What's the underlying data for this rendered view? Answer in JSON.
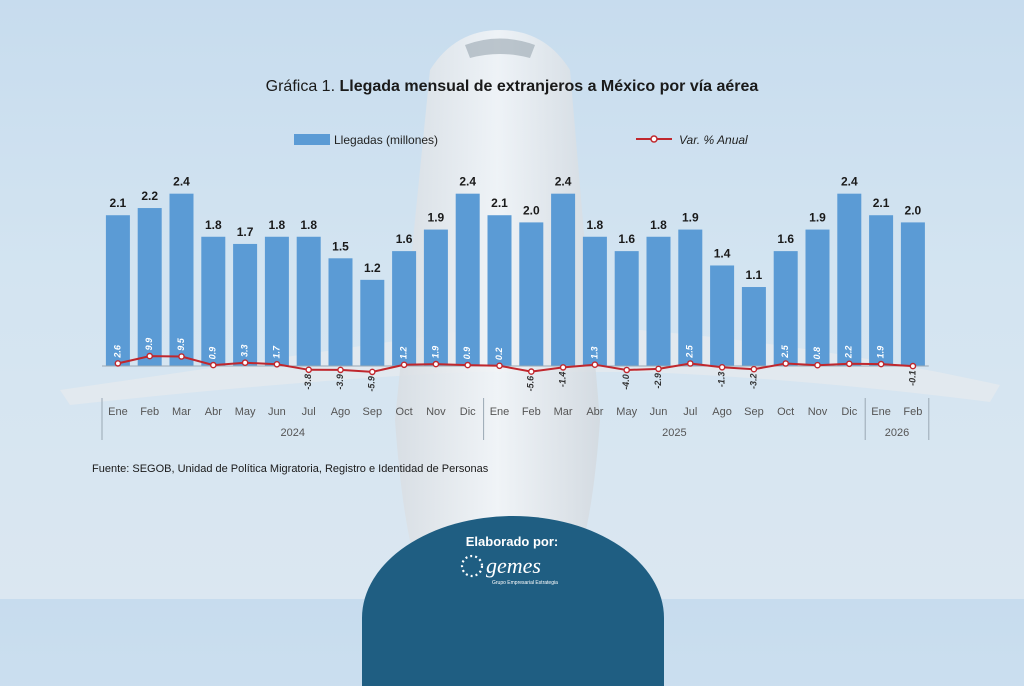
{
  "title_prefix": "Gráfica 1.",
  "title_main": "Llegada mensual de extranjeros a México por vía aérea",
  "source": "Fuente: SEGOB, Unidad de Política Migratoria, Registro e Identidad de Personas",
  "badge": {
    "label": "Elaborado por:",
    "logo_text": "gemes",
    "logo_sub": "Grupo Empresarial Estrategia"
  },
  "colors": {
    "bar": "#5b9bd5",
    "line": "#c0272d",
    "axis_text": "#555555"
  },
  "chart_data": {
    "type": "bar",
    "legend": {
      "bar_series": "Llegadas (millones)",
      "line_series": "Var. % Anual",
      "position": "top"
    },
    "categories": [
      "Ene",
      "Feb",
      "Mar",
      "Abr",
      "May",
      "Jun",
      "Jul",
      "Ago",
      "Sep",
      "Oct",
      "Nov",
      "Dic",
      "Ene",
      "Feb",
      "Mar",
      "Abr",
      "May",
      "Jun",
      "Jul",
      "Ago",
      "Sep",
      "Oct",
      "Nov",
      "Dic",
      "Ene",
      "Feb"
    ],
    "years": [
      {
        "label": "2024",
        "start": 0,
        "end": 11
      },
      {
        "label": "2025",
        "start": 12,
        "end": 23
      },
      {
        "label": "2026",
        "start": 24,
        "end": 25
      }
    ],
    "series": [
      {
        "name": "Llegadas (millones)",
        "type": "bar",
        "values": [
          2.1,
          2.2,
          2.4,
          1.8,
          1.7,
          1.8,
          1.8,
          1.5,
          1.2,
          1.6,
          1.9,
          2.4,
          2.1,
          2.0,
          2.4,
          1.8,
          1.6,
          1.8,
          1.9,
          1.4,
          1.1,
          1.6,
          1.9,
          2.4,
          2.1,
          2.0
        ]
      },
      {
        "name": "Var. % Anual",
        "type": "line",
        "values": [
          2.6,
          9.9,
          9.5,
          0.9,
          3.3,
          1.7,
          -3.8,
          -3.9,
          -5.9,
          1.2,
          1.9,
          0.9,
          0.2,
          -5.6,
          -1.4,
          1.3,
          -4.0,
          -2.9,
          2.5,
          -1.3,
          -3.2,
          2.5,
          0.8,
          2.2,
          1.9,
          -0.1
        ]
      }
    ]
  }
}
